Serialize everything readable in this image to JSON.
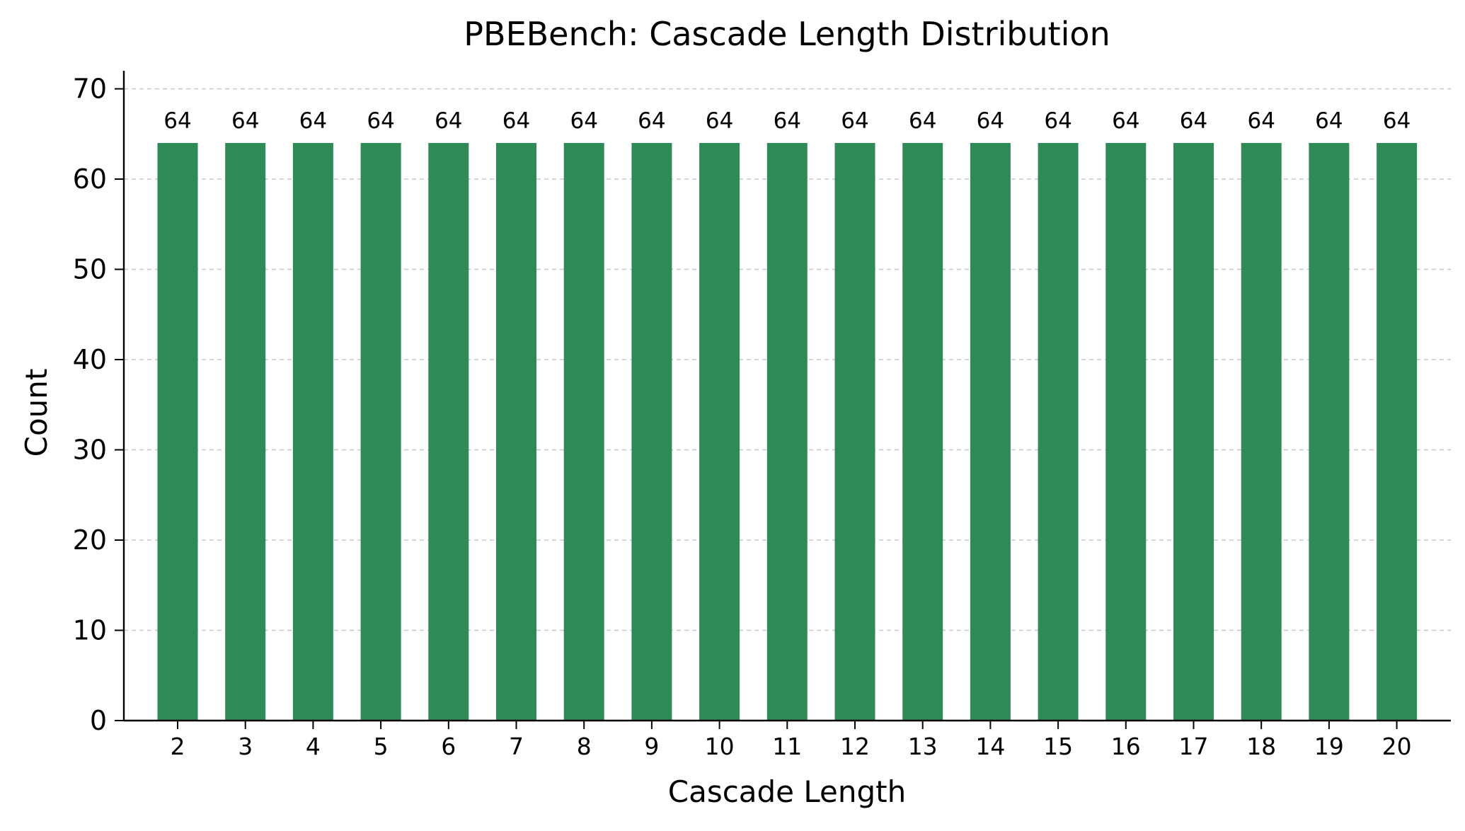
{
  "chart_data": {
    "type": "bar",
    "title": "PBEBench: Cascade Length Distribution",
    "xlabel": "Cascade Length",
    "ylabel": "Count",
    "categories": [
      "2",
      "3",
      "4",
      "5",
      "6",
      "7",
      "8",
      "9",
      "10",
      "11",
      "12",
      "13",
      "14",
      "15",
      "16",
      "17",
      "18",
      "19",
      "20"
    ],
    "values": [
      64,
      64,
      64,
      64,
      64,
      64,
      64,
      64,
      64,
      64,
      64,
      64,
      64,
      64,
      64,
      64,
      64,
      64,
      64
    ],
    "ylim": [
      0,
      72
    ],
    "yticks": [
      0,
      10,
      20,
      30,
      40,
      50,
      60,
      70
    ],
    "grid": "y-dashed",
    "bar_color": "#2e8b57",
    "grid_color": "#c8c8c8",
    "show_data_labels": true
  }
}
